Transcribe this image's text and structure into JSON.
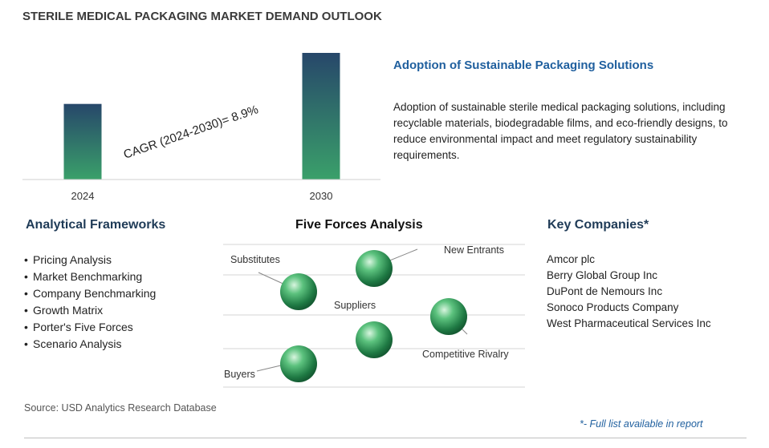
{
  "title": "STERILE MEDICAL PACKAGING MARKET DEMAND OUTLOOK",
  "chart_data": {
    "type": "bar",
    "categories": [
      "2024",
      "2030"
    ],
    "values": [
      0.597,
      1.0
    ],
    "annotation": "CAGR (2024-2030)=  8.9%",
    "grid": false
  },
  "trend": {
    "heading": "Adoption of Sustainable Packaging Solutions",
    "description": "Adoption of sustainable sterile medical packaging solutions, including recyclable materials, biodegradable films, and eco-friendly designs, to reduce environmental impact and meet regulatory sustainability requirements."
  },
  "frameworks": {
    "heading": "Analytical Frameworks",
    "items": [
      "Pricing Analysis",
      "Market Benchmarking",
      "Company Benchmarking",
      "Growth Matrix",
      "Porter's Five Forces",
      "Scenario Analysis"
    ]
  },
  "five_forces": {
    "heading": "Five Forces Analysis",
    "labels": {
      "new_entrants": "New Entrants",
      "substitutes": "Substitutes",
      "suppliers": "Suppliers",
      "competitive_rivalry": "Competitive Rivalry",
      "buyers": "Buyers"
    }
  },
  "companies": {
    "heading": "Key Companies*",
    "items": [
      "Amcor plc",
      "Berry Global Group Inc",
      "DuPont de Nemours Inc",
      "Sonoco Products Company",
      "West Pharmaceutical Services Inc"
    ]
  },
  "footer": {
    "source": "Source: USD Analytics Research Database",
    "note": "*- Full list available in report"
  },
  "colors": {
    "bar_top": "#27476a",
    "bar_bottom": "#3aa06a",
    "sphere": "#2e9e5a",
    "heading_blue": "#1f5f9e"
  }
}
